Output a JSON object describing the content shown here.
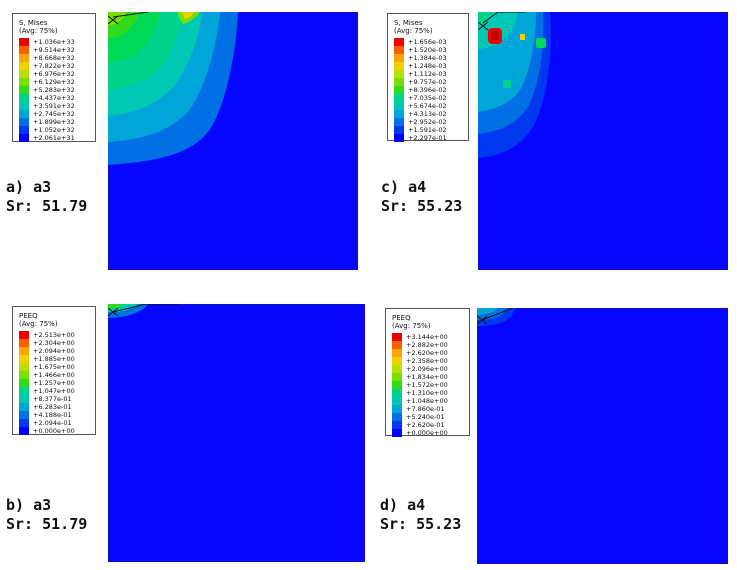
{
  "palette": [
    "#0000ff",
    "#0038f0",
    "#0070e4",
    "#00a6d8",
    "#00c8b4",
    "#00d48a",
    "#00d858",
    "#30da1c",
    "#78e000",
    "#b8e000",
    "#f2d000",
    "#fca400",
    "#f66000",
    "#ee0000"
  ],
  "panels": [
    {
      "id": "a",
      "caption_label": "a)  a3",
      "caption_value": "Sr:  51.79",
      "legend_title": "S, Mises",
      "legend_avg": "(Avg: 75%)",
      "legend_values": [
        "+1.036e+33",
        "+9.514e+32",
        "+8.668e+32",
        "+7.822e+32",
        "+6.976e+32",
        "+6.129e+32",
        "+5.283e+32",
        "+4.437e+32",
        "+3.591e+32",
        "+2.745e+32",
        "+1.899e+32",
        "+1.052e+32",
        "+2.061e+31"
      ]
    },
    {
      "id": "c",
      "caption_label": "c)  a4",
      "caption_value": "Sr:  55.23",
      "legend_title": "S, Mises",
      "legend_avg": "(Avg: 75%)",
      "legend_values": [
        "+1.656e-03",
        "+1.520e-03",
        "+1.384e-03",
        "+1.248e-03",
        "+1.112e-03",
        "+9.757e-02",
        "+8.396e-02",
        "+7.035e-02",
        "+5.674e-02",
        "+4.313e-02",
        "+2.952e-02",
        "+1.591e-02",
        "+2.297e-01"
      ]
    },
    {
      "id": "b",
      "caption_label": "b)  a3",
      "caption_value": "Sr:  51.79",
      "legend_title": "PEEQ",
      "legend_avg": "(Avg: 75%)",
      "legend_values": [
        "+2.513e+00",
        "+2.304e+00",
        "+2.094e+00",
        "+1.885e+00",
        "+1.675e+00",
        "+1.466e+00",
        "+1.257e+00",
        "+1.047e+00",
        "+8.377e-01",
        "+6.283e-01",
        "+4.188e-01",
        "+2.094e-01",
        "+0.000e+00"
      ]
    },
    {
      "id": "d",
      "caption_label": "d)  a4",
      "caption_value": "Sr:  55.23",
      "legend_title": "PEEQ",
      "legend_avg": "(Avg: 75%)",
      "legend_values": [
        "+3.144e+00",
        "+2.882e+00",
        "+2.620e+00",
        "+2.358e+00",
        "+2.096e+00",
        "+1.834e+00",
        "+1.572e+00",
        "+1.310e+00",
        "+1.048e+00",
        "+7.860e-01",
        "+5.240e-01",
        "+2.620e-01",
        "+0.000e+00"
      ]
    }
  ]
}
